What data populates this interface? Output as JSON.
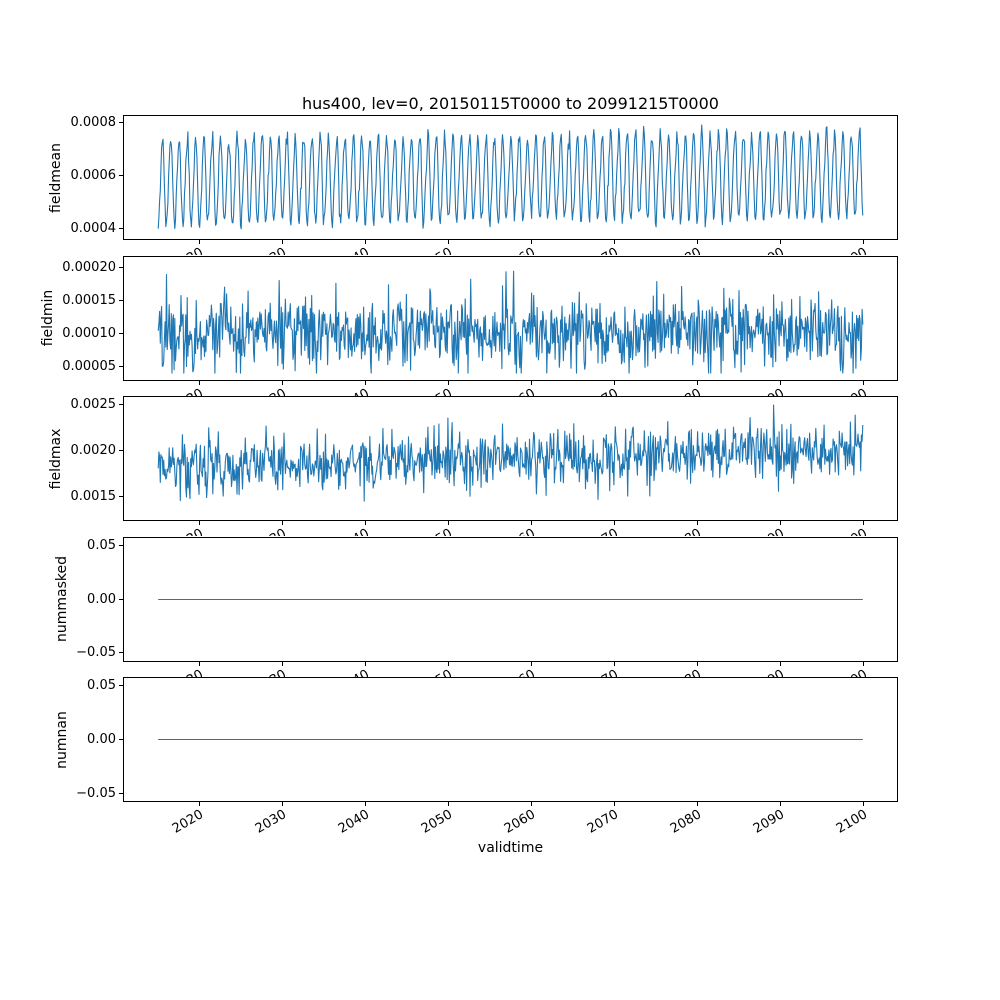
{
  "figure": {
    "title": "hus400, lev=0, 20150115T0000 to 20991215T0000",
    "xlabel": "validtime",
    "line_color": "#1f77b4",
    "background_color": "#ffffff",
    "text_color": "#000000"
  },
  "x_axis": {
    "label": "validtime",
    "xlim": [
      2010.8,
      2104.2
    ],
    "data_start": 2015.04,
    "data_end": 2099.96,
    "tick_rotation_deg": 30,
    "ticks": [
      {
        "value": 2020,
        "label": "2020"
      },
      {
        "value": 2030,
        "label": "2030"
      },
      {
        "value": 2040,
        "label": "2040"
      },
      {
        "value": 2050,
        "label": "2050"
      },
      {
        "value": 2060,
        "label": "2060"
      },
      {
        "value": 2070,
        "label": "2070"
      },
      {
        "value": 2080,
        "label": "2080"
      },
      {
        "value": 2090,
        "label": "2090"
      },
      {
        "value": 2100,
        "label": "2100"
      }
    ]
  },
  "chart_data": [
    {
      "type": "line",
      "title": "hus400, lev=0, 20150115T0000 to 20991215T0000",
      "ylabel": "fieldmean",
      "ylim": [
        0.000355,
        0.00083
      ],
      "grid": false,
      "yticks": [
        {
          "value": 0.0004,
          "label": "0.0004"
        },
        {
          "value": 0.0006,
          "label": "0.0006"
        },
        {
          "value": 0.0008,
          "label": "0.0008"
        }
      ],
      "series": [
        {
          "name": "fieldmean",
          "color": "#1f77b4",
          "n_points": 1020,
          "model": {
            "kind": "seasonal_noise",
            "baseline": 0.000575,
            "amplitude": 0.00016,
            "amplitude2": 2e-05,
            "phase": -1.5708,
            "trend": 3e-05,
            "noise_sd": 1.5e-05,
            "clamp": [
              0.000378,
              0.000792
            ],
            "seed": 11
          },
          "approx_range": [
            0.00038,
            0.00079
          ],
          "description": "annual seasonal oscillation, monthly values 2015-2099"
        }
      ]
    },
    {
      "type": "line",
      "ylabel": "fieldmin",
      "ylim": [
        2.8e-05,
        0.000218
      ],
      "grid": false,
      "yticks": [
        {
          "value": 5e-05,
          "label": "0.00005"
        },
        {
          "value": 0.0001,
          "label": "0.00010"
        },
        {
          "value": 0.00015,
          "label": "0.00015"
        },
        {
          "value": 0.0002,
          "label": "0.00020"
        }
      ],
      "series": [
        {
          "name": "fieldmin",
          "color": "#1f77b4",
          "n_points": 1020,
          "model": {
            "kind": "noise",
            "baseline": 0.000102,
            "amplitude": 0,
            "amplitude2": 0,
            "phase": 0,
            "trend": 0,
            "noise_sd": 2.8e-05,
            "clamp": [
              4e-05,
              0.00021
            ],
            "seed": 22
          },
          "approx_range": [
            4e-05,
            0.00021
          ],
          "description": "noisy stationary series around 0.0001"
        }
      ]
    },
    {
      "type": "line",
      "ylabel": "fieldmax",
      "ylim": [
        0.00124,
        0.00259
      ],
      "grid": false,
      "yticks": [
        {
          "value": 0.0015,
          "label": "0.0015"
        },
        {
          "value": 0.002,
          "label": "0.0020"
        },
        {
          "value": 0.0025,
          "label": "0.0025"
        }
      ],
      "series": [
        {
          "name": "fieldmax",
          "color": "#1f77b4",
          "n_points": 1020,
          "model": {
            "kind": "noise",
            "baseline": 0.00182,
            "amplitude": 4e-05,
            "amplitude2": 0,
            "phase": 0,
            "trend": 0.00018,
            "noise_sd": 0.00015,
            "clamp": [
              0.00132,
              0.00252
            ],
            "seed": 33
          },
          "approx_range": [
            0.0013,
            0.0025
          ],
          "description": "noisy series around 0.0018 with slight upward trend to ~0.0020"
        }
      ]
    },
    {
      "type": "line",
      "ylabel": "nummasked",
      "ylim": [
        -0.058,
        0.058
      ],
      "grid": false,
      "yticks": [
        {
          "value": -0.05,
          "label": "−0.05"
        },
        {
          "value": 0,
          "label": "0.00"
        },
        {
          "value": 0.05,
          "label": "0.05"
        }
      ],
      "series": [
        {
          "name": "nummasked",
          "color": "#1f77b4",
          "n_points": 2,
          "model": {
            "kind": "constant",
            "baseline": 0,
            "amplitude": 0,
            "amplitude2": 0,
            "phase": 0,
            "trend": 0,
            "noise_sd": 0,
            "clamp": [
              0,
              0
            ],
            "seed": 44
          },
          "approx_range": [
            0,
            0
          ],
          "description": "constant zero line"
        }
      ]
    },
    {
      "type": "line",
      "ylabel": "numnan",
      "ylim": [
        -0.058,
        0.058
      ],
      "grid": false,
      "yticks": [
        {
          "value": -0.05,
          "label": "−0.05"
        },
        {
          "value": 0,
          "label": "0.00"
        },
        {
          "value": 0.05,
          "label": "0.05"
        }
      ],
      "series": [
        {
          "name": "numnan",
          "color": "#1f77b4",
          "n_points": 2,
          "model": {
            "kind": "constant",
            "baseline": 0,
            "amplitude": 0,
            "amplitude2": 0,
            "phase": 0,
            "trend": 0,
            "noise_sd": 0,
            "clamp": [
              0,
              0
            ],
            "seed": 55
          },
          "approx_range": [
            0,
            0
          ],
          "description": "constant zero line"
        }
      ]
    }
  ]
}
